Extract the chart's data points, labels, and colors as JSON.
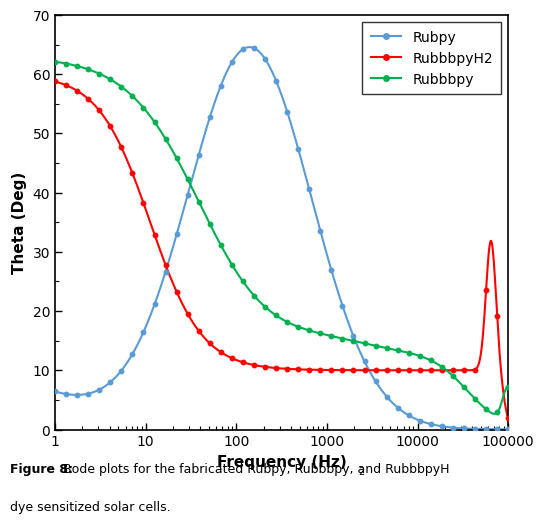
{
  "title": "",
  "xlabel": "Frequency (Hz)",
  "ylabel": "Theta (Deg)",
  "xlim": [
    1,
    100000
  ],
  "ylim": [
    0,
    70
  ],
  "yticks": [
    0,
    10,
    20,
    30,
    40,
    50,
    60,
    70
  ],
  "xticks": [
    1,
    10,
    100,
    1000,
    10000,
    100000
  ],
  "colors": {
    "Rubpy": "#5B9BD5",
    "RubbbpyH2": "#FF0000",
    "Rubbbpy": "#00B050"
  },
  "legend_labels": [
    "Rubpy",
    "RubbbpyH2",
    "Rubbbpy"
  ],
  "caption_bold": "Figure 8:",
  "caption_normal": " Bode plots for the fabricated Rubpy, Rubbbpy, and RubbbpyH",
  "caption_sub": "2",
  "caption_line2": "dye sensitized solar cells.",
  "background_color": "#ffffff"
}
